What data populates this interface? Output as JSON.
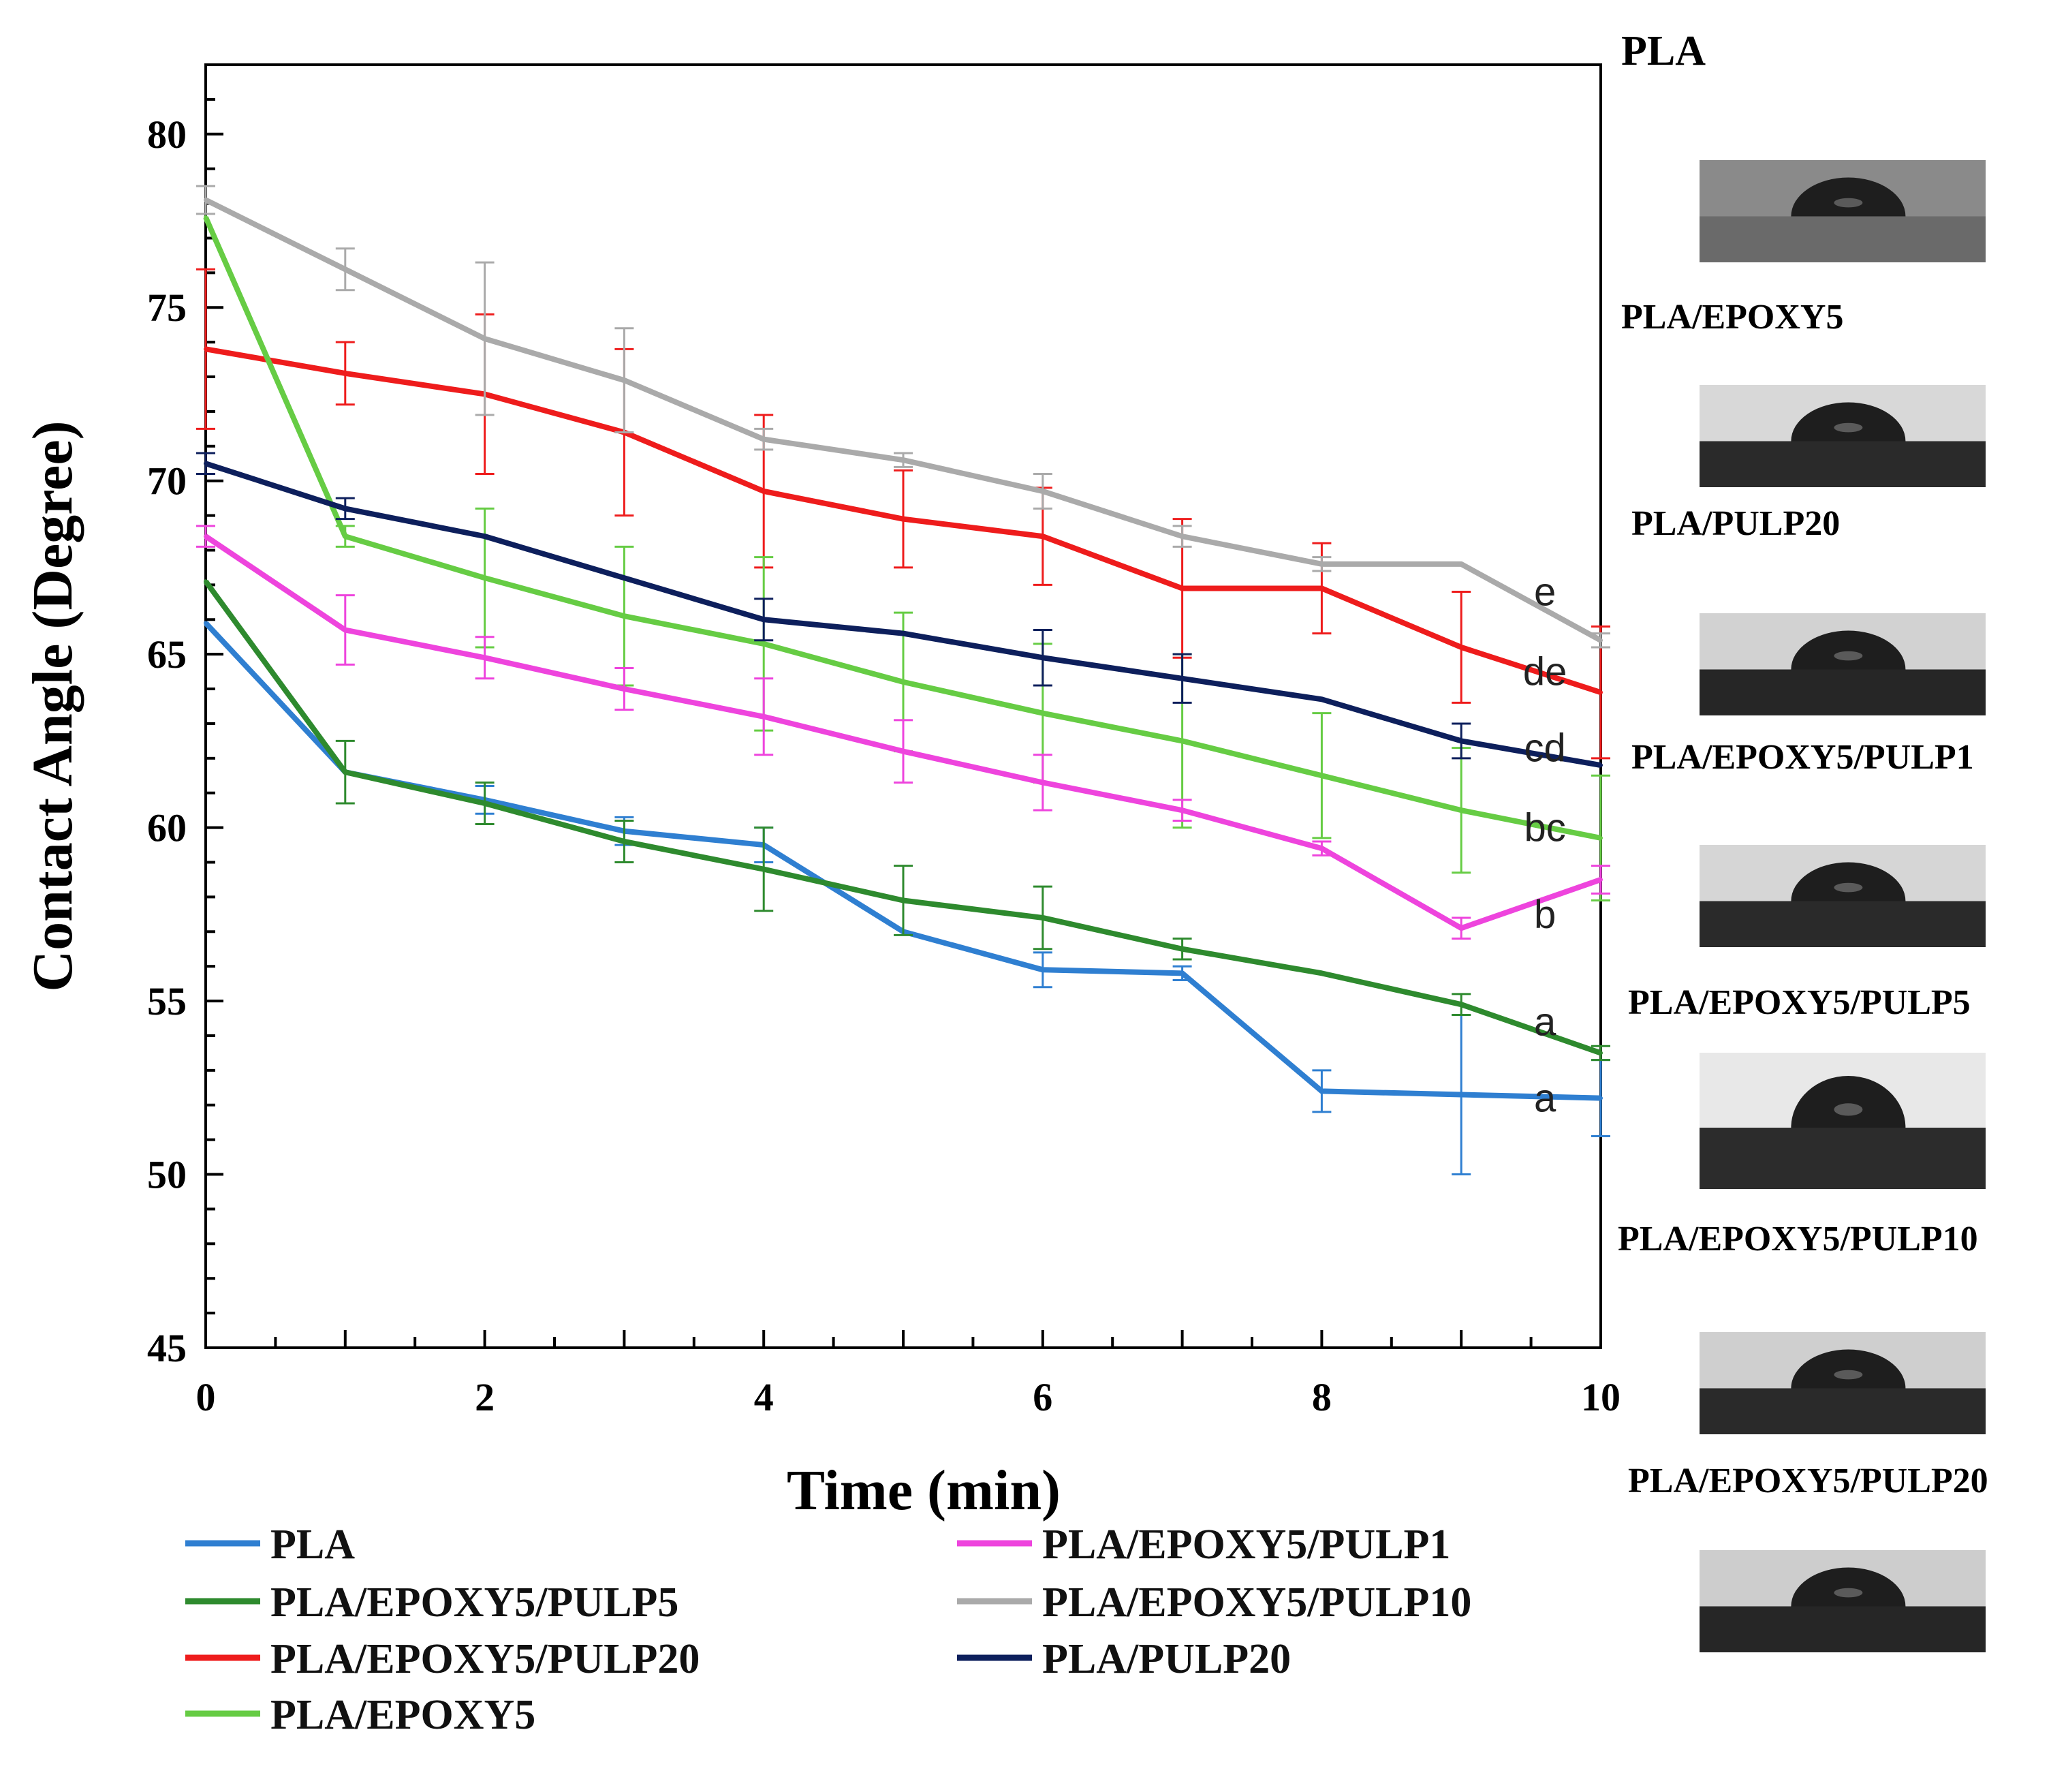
{
  "chart_data": {
    "type": "line",
    "title": "",
    "xlabel": "Time (min)",
    "ylabel": "Contact Angle (Degree)",
    "xlim": [
      0,
      10
    ],
    "ylim": [
      45,
      82
    ],
    "x_ticks": [
      "0",
      "2",
      "4",
      "6",
      "8",
      "10"
    ],
    "y_ticks": [
      "45",
      "50",
      "55",
      "60",
      "65",
      "70",
      "75",
      "80"
    ],
    "x": [
      0,
      1,
      2,
      3,
      4,
      5,
      6,
      7,
      8,
      9,
      10
    ],
    "series": [
      {
        "name": "PLA",
        "color": "#2f7fd1",
        "values": [
          65.9,
          61.6,
          60.8,
          59.9,
          59.5,
          57.0,
          55.9,
          55.8,
          52.4,
          52.3,
          52.2
        ],
        "errors": [
          0,
          0,
          0.4,
          0.4,
          0.5,
          0,
          0.5,
          0.2,
          0.6,
          2.3,
          1.1
        ]
      },
      {
        "name": "PLA/EPOXY5/PULP5",
        "color": "#2e8a2e",
        "values": [
          67.1,
          61.6,
          60.7,
          59.6,
          58.8,
          57.9,
          57.4,
          56.5,
          55.8,
          54.9,
          53.5
        ],
        "errors": [
          0,
          0.9,
          0.6,
          0.6,
          1.2,
          1.0,
          0.9,
          0.3,
          0,
          0.3,
          0.2
        ]
      },
      {
        "name": "PLA/EPOXY5/PULP20",
        "color": "#ee1c1c",
        "values": [
          73.8,
          73.1,
          72.5,
          71.4,
          69.7,
          68.9,
          68.4,
          66.9,
          66.9,
          65.2,
          63.9
        ],
        "errors": [
          2.3,
          0.9,
          2.3,
          2.4,
          2.2,
          1.4,
          1.4,
          2.0,
          1.3,
          1.6,
          1.9
        ]
      },
      {
        "name": "PLA/EPOXY5",
        "color": "#66cc44",
        "values": [
          77.6,
          68.4,
          67.2,
          66.1,
          65.3,
          64.2,
          63.3,
          62.5,
          61.5,
          60.5,
          59.7
        ],
        "errors": [
          0,
          0.3,
          2.0,
          2.0,
          2.5,
          2.0,
          2.0,
          2.5,
          1.8,
          1.8,
          1.8
        ]
      },
      {
        "name": "PLA/EPOXY5/PULP1",
        "color": "#ee44dd",
        "values": [
          68.4,
          65.7,
          64.9,
          64.0,
          63.2,
          62.2,
          61.3,
          60.5,
          59.4,
          57.1,
          58.5
        ],
        "errors": [
          0.3,
          1.0,
          0.6,
          0.6,
          1.1,
          0.9,
          0.8,
          0.3,
          0.2,
          0.3,
          0.4
        ]
      },
      {
        "name": "PLA/EPOXY5/PULP10",
        "color": "#aaaaaa",
        "values": [
          78.1,
          76.1,
          74.1,
          72.9,
          71.2,
          70.6,
          69.7,
          68.4,
          67.6,
          67.6,
          65.4
        ],
        "errors": [
          0.4,
          0.6,
          2.2,
          1.5,
          0.3,
          0.2,
          0.5,
          0.3,
          0.2,
          0,
          0.2
        ]
      },
      {
        "name": "PLA/PULP20",
        "color": "#0d1f5c",
        "values": [
          70.5,
          69.2,
          68.4,
          67.2,
          66.0,
          65.6,
          64.9,
          64.3,
          63.7,
          62.5,
          61.8
        ],
        "errors": [
          0.3,
          0.3,
          0,
          0,
          0.6,
          0,
          0.8,
          0.7,
          0,
          0.5,
          0
        ]
      }
    ],
    "significance_labels": [
      {
        "text": "e",
        "series": "PLA/EPOXY5/PULP10",
        "y": 66.8
      },
      {
        "text": "de",
        "series": "PLA/EPOXY5/PULP20",
        "y": 64.5
      },
      {
        "text": "cd",
        "series": "PLA/PULP20",
        "y": 62.3
      },
      {
        "text": "bc",
        "series": "PLA/EPOXY5",
        "y": 60.0
      },
      {
        "text": "b",
        "series": "PLA/EPOXY5/PULP1",
        "y": 57.5
      },
      {
        "text": "a",
        "series": "PLA/EPOXY5/PULP5",
        "y": 54.4
      },
      {
        "text": "a",
        "series": "PLA",
        "y": 52.2
      }
    ],
    "legend": [
      "PLA",
      "PLA/EPOXY5/PULP1",
      "PLA/EPOXY5/PULP5",
      "PLA/EPOXY5/PULP10",
      "PLA/EPOXY5/PULP20",
      "PLA/PULP20",
      "PLA/EPOXY5"
    ]
  },
  "droplet_images": [
    {
      "title": "PLA",
      "bg": "#8a8a8a",
      "base": "#6a6a6a"
    },
    {
      "title": "PLA/EPOXY5",
      "bg": "#d8d8d8",
      "base": "#2a2a2a"
    },
    {
      "title": "PLA/PULP20",
      "bg": "#d2d2d2",
      "base": "#262626"
    },
    {
      "title": "PLA/EPOXY5/PULP1",
      "bg": "#d6d6d6",
      "base": "#2a2a2a"
    },
    {
      "title": "PLA/EPOXY5/PULP5",
      "bg": "#e8e8e8",
      "base": "#2c2c2c"
    },
    {
      "title": "PLA/EPOXY5/PULP10",
      "bg": "#cfcfcf",
      "base": "#2a2a2a"
    },
    {
      "title": "PLA/EPOXY5/PULP20",
      "bg": "#cdcdcd",
      "base": "#262626"
    }
  ]
}
